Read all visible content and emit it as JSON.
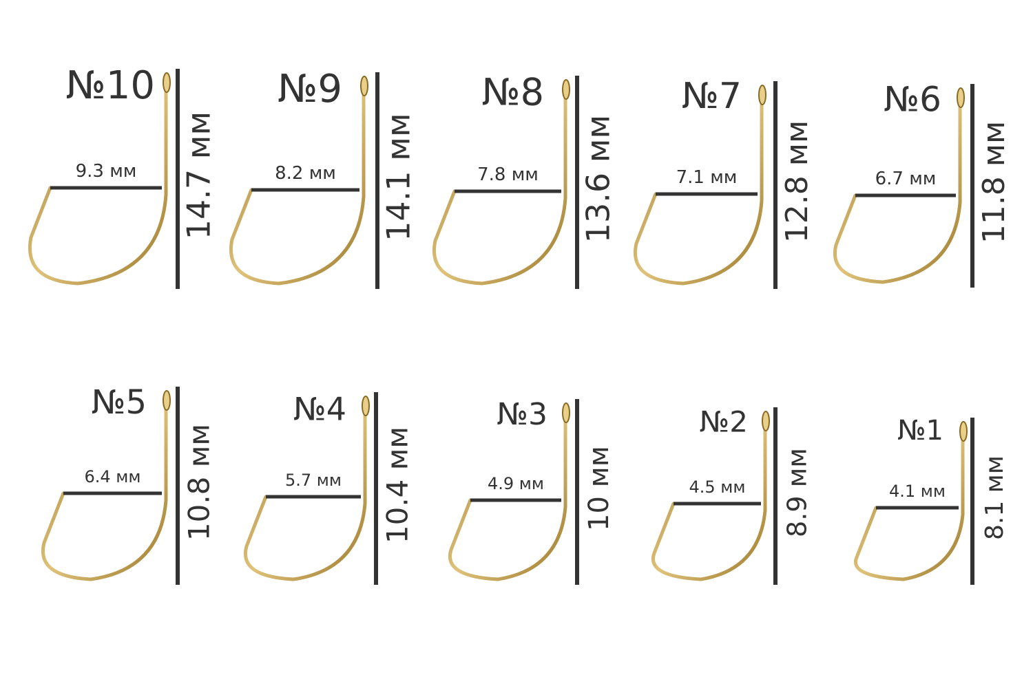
{
  "hooks": [
    {
      "number": "№10",
      "width": "9.3 мм",
      "length": "14.7 мм"
    },
    {
      "number": "№9",
      "width": "8.2 мм",
      "length": "14.1 мм"
    },
    {
      "number": "№8",
      "width": "7.8 мм",
      "length": "13.6 мм"
    },
    {
      "number": "№7",
      "width": "7.1 мм",
      "length": "12.8 мм"
    },
    {
      "number": "№6",
      "width": "6.7 мм",
      "length": "11.8 мм"
    },
    {
      "number": "№5",
      "width": "6.4 мм",
      "length": "10.8 мм"
    },
    {
      "number": "№4",
      "width": "5.7 мм",
      "length": "10.4 мм"
    },
    {
      "number": "№3",
      "width": "4.9 мм",
      "length": "10 мм"
    },
    {
      "number": "№2",
      "width": "4.5 мм",
      "length": "8.9 мм"
    },
    {
      "number": "№1",
      "width": "4.1 мм",
      "length": "8.1 мм"
    }
  ]
}
